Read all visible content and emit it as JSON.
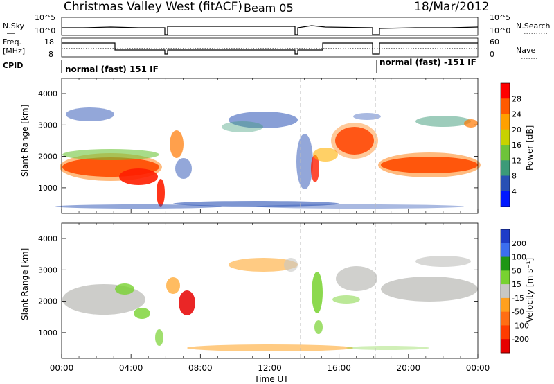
{
  "header": {
    "station": "Christmas Valley West (fitACF)",
    "beam": "Beam 05",
    "date": "18/Mar/2012"
  },
  "strips": {
    "nsky_label": "N.Sky",
    "nsky_ticks": [
      "10^5",
      "10^0"
    ],
    "nsearch_label": "N.Search",
    "nsearch_ticks": [
      "10^5",
      "10^0"
    ],
    "freq_label_1": "Freq.",
    "freq_label_2": "[MHz]",
    "freq_ticks": [
      "18",
      "8"
    ],
    "nave_label": "Nave",
    "nave_ticks": [
      "60",
      "0"
    ],
    "cpid_label": "CPID",
    "cpid_1": "normal (fast) 151 IF",
    "cpid_2": "normal (fast) -151 IF"
  },
  "chart_data": [
    {
      "type": "heatmap",
      "name": "power",
      "ylabel": "Slant Range [km]",
      "y_ticks": [
        "4000",
        "3000",
        "2000",
        "1000"
      ],
      "ylim": [
        200,
        4600
      ],
      "colorbar_label": "Power [dB]",
      "colorbar_ticks": [
        "28",
        "24",
        "20",
        "16",
        "12",
        "8",
        "4"
      ],
      "colorbar_colors": [
        "#ff0000",
        "#ff5a00",
        "#ffa000",
        "#c8d200",
        "#6ec43a",
        "#3c9a78",
        "#2850b4",
        "#0018ff"
      ]
    },
    {
      "type": "heatmap",
      "name": "velocity",
      "ylabel": "Slant Range [km]",
      "y_ticks": [
        "4000",
        "3000",
        "2000",
        "1000"
      ],
      "ylim": [
        200,
        4600
      ],
      "colorbar_label": "Velocity [m s⁻¹]",
      "colorbar_ticks": [
        "200",
        "100",
        "50",
        "15",
        "-15",
        "-50",
        "-100",
        "-200"
      ],
      "colorbar_colors": [
        "#1e3cc8",
        "#3c6ef0",
        "#1e9614",
        "#78d230",
        "#c8c8c4",
        "#ffa01e",
        "#ff6e14",
        "#ff3c00",
        "#e60000"
      ]
    }
  ],
  "x_axis": {
    "label": "Time UT",
    "ticks": [
      "00:00",
      "04:00",
      "08:00",
      "12:00",
      "16:00",
      "20:00",
      "00:00"
    ]
  }
}
